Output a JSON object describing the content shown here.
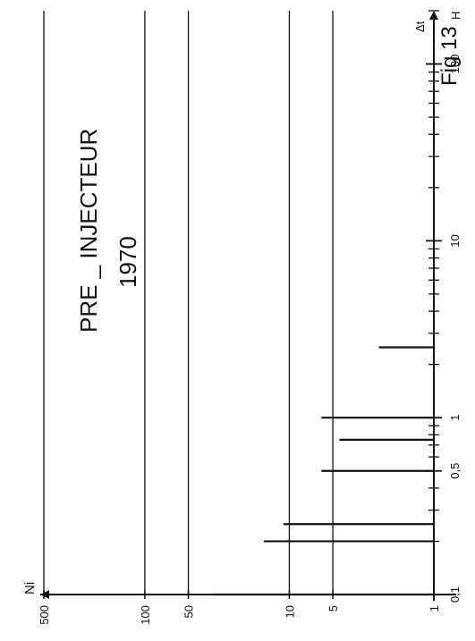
{
  "figure_label": "Fig 13",
  "title_line1": "PRE _ INJECTEUR",
  "title_line2": "1970",
  "chart_data": {
    "type": "bar",
    "orientation": "rotated-90",
    "ylabel": "Ni",
    "xlabel": "Δt",
    "xunit": "H",
    "x_scale": "log",
    "y_scale": "log",
    "xlim": [
      0.1,
      200
    ],
    "ylim": [
      1,
      500
    ],
    "x_tick_labels": [
      "0,1",
      "0,5",
      "1",
      "10",
      "100"
    ],
    "x_tick_values": [
      0.1,
      0.5,
      1,
      10,
      100
    ],
    "x_minor_ticks": [
      0.2,
      0.3,
      0.4,
      0.6,
      0.7,
      0.8,
      0.9,
      2,
      3,
      4,
      5,
      6,
      7,
      8,
      9,
      20,
      30,
      40,
      50,
      60,
      70,
      80,
      90,
      200
    ],
    "y_tick_labels": [
      "1",
      "5",
      "10",
      "50",
      "100",
      "500"
    ],
    "y_tick_values": [
      1,
      5,
      10,
      50,
      100,
      500
    ],
    "grid_y": [
      5,
      10,
      50,
      100,
      500
    ],
    "bars": [
      {
        "x": 0.1,
        "y": 34
      },
      {
        "x": 0.2,
        "y": 15
      },
      {
        "x": 0.25,
        "y": 11
      },
      {
        "x": 0.5,
        "y": 6
      },
      {
        "x": 0.75,
        "y": 4.5
      },
      {
        "x": 1,
        "y": 6
      },
      {
        "x": 2.5,
        "y": 2.4
      }
    ]
  }
}
